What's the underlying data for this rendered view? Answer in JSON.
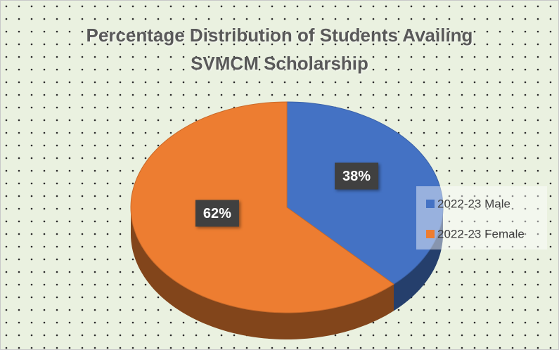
{
  "chart_data": {
    "type": "pie",
    "title": "Percentage Distribution of Students Availing SVMCM Scholarship",
    "categories": [
      "2022-23 Male",
      "2022-23 Female"
    ],
    "values": [
      38,
      62
    ],
    "value_labels": [
      "38%",
      "62%"
    ],
    "colors": [
      "#4472c4",
      "#ed7d31"
    ],
    "legend": "right"
  }
}
